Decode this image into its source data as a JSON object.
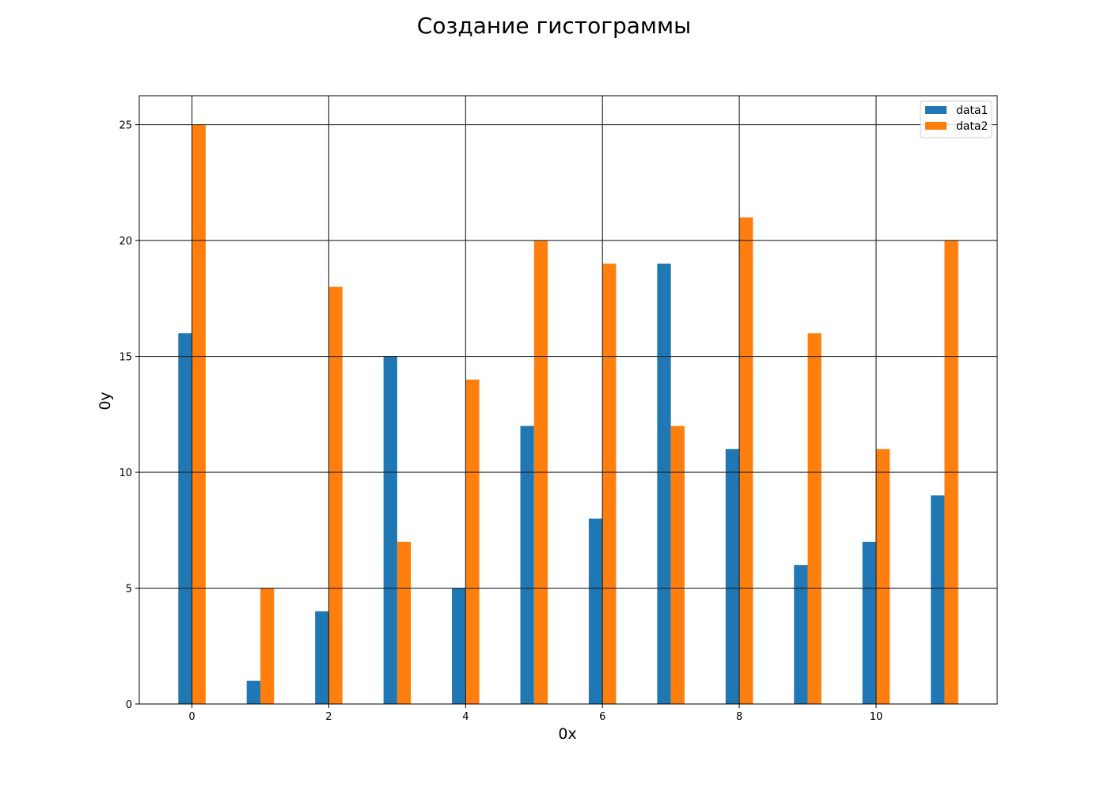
{
  "chart_data": {
    "type": "bar",
    "title": "Создание гистограммы",
    "xlabel": "0x",
    "ylabel": "0y",
    "x": [
      0,
      1,
      2,
      3,
      4,
      5,
      6,
      7,
      8,
      9,
      10,
      11
    ],
    "xticks": [
      0,
      2,
      4,
      6,
      8,
      10
    ],
    "yticks": [
      0,
      5,
      10,
      15,
      20,
      25
    ],
    "xlim": [
      -0.77,
      11.77
    ],
    "ylim": [
      0,
      26.25
    ],
    "grid": true,
    "legend_position": "top-right",
    "series": [
      {
        "name": "data1",
        "color": "#1f77b4",
        "values": [
          16,
          1,
          4,
          15,
          5,
          12,
          8,
          19,
          11,
          6,
          7,
          9
        ]
      },
      {
        "name": "data2",
        "color": "#ff7f0e",
        "values": [
          25,
          5,
          18,
          7,
          14,
          20,
          19,
          12,
          21,
          16,
          11,
          20
        ]
      }
    ]
  }
}
